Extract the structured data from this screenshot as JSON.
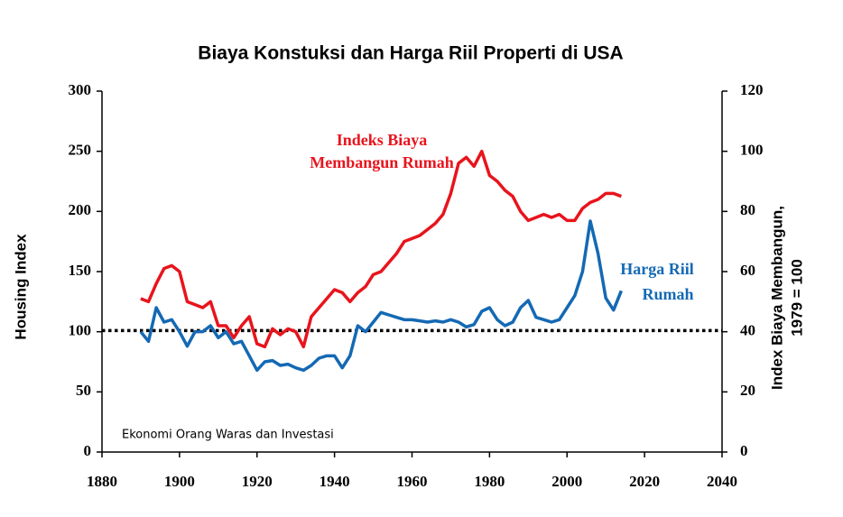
{
  "chart_data": {
    "type": "line",
    "title": "Biaya Konstuksi dan Harga Riil Properti di USA",
    "y_label": "Housing Index",
    "y2_label": [
      "Index Biaya Membangun,",
      "1979 = 100"
    ],
    "annotations": {
      "red": [
        "Indeks Biaya",
        "Membangun Rumah"
      ],
      "blue": [
        "Harga Riil",
        "Rumah"
      ],
      "source": "Ekonomi Orang Waras dan Investasi"
    },
    "x": [
      1890,
      1892,
      1894,
      1896,
      1898,
      1900,
      1902,
      1904,
      1906,
      1908,
      1910,
      1912,
      1914,
      1916,
      1918,
      1920,
      1922,
      1924,
      1926,
      1928,
      1930,
      1932,
      1934,
      1936,
      1938,
      1940,
      1942,
      1944,
      1946,
      1948,
      1950,
      1952,
      1954,
      1956,
      1958,
      1960,
      1962,
      1964,
      1966,
      1968,
      1970,
      1972,
      1974,
      1976,
      1978,
      1980,
      1982,
      1984,
      1986,
      1988,
      1990,
      1992,
      1994,
      1996,
      1998,
      2000,
      2002,
      2004,
      2006,
      2008,
      2010,
      2012,
      2014
    ],
    "series": [
      {
        "color": "#e8141c",
        "axis": "y2",
        "values": [
          51,
          50,
          56,
          61,
          62,
          60,
          50,
          49,
          48,
          50,
          42,
          42,
          38,
          42,
          45,
          36,
          35,
          41,
          39,
          41,
          40,
          35,
          45,
          48,
          51,
          54,
          53,
          50,
          53,
          55,
          59,
          60,
          63,
          66,
          70,
          71,
          72,
          74,
          76,
          79,
          86,
          96,
          98,
          95,
          100,
          92,
          90,
          87,
          85,
          80,
          77,
          78,
          79,
          78,
          79,
          77,
          77,
          81,
          83,
          84,
          86,
          86,
          85
        ]
      },
      {
        "color": "#1469b4",
        "values": [
          100,
          92,
          120,
          108,
          110,
          100,
          88,
          100,
          100,
          105,
          95,
          100,
          90,
          92,
          80,
          68,
          75,
          76,
          72,
          73,
          70,
          68,
          72,
          78,
          80,
          80,
          70,
          80,
          105,
          100,
          108,
          116,
          114,
          112,
          110,
          110,
          109,
          108,
          109,
          108,
          110,
          108,
          104,
          106,
          117,
          120,
          110,
          105,
          108,
          120,
          126,
          112,
          110,
          108,
          110,
          120,
          130,
          150,
          192,
          165,
          128,
          118,
          134
        ]
      }
    ],
    "reference_line": 101,
    "xlim": [
      1880,
      2040
    ],
    "xticks": [
      1880,
      1900,
      1920,
      1940,
      1960,
      1980,
      2000,
      2020,
      2040
    ],
    "ylim": [
      0,
      300
    ],
    "yticks": [
      0,
      50,
      100,
      150,
      200,
      250,
      300
    ],
    "y2lim": [
      0,
      120
    ],
    "y2ticks": [
      0,
      20,
      40,
      60,
      80,
      100,
      120
    ]
  }
}
